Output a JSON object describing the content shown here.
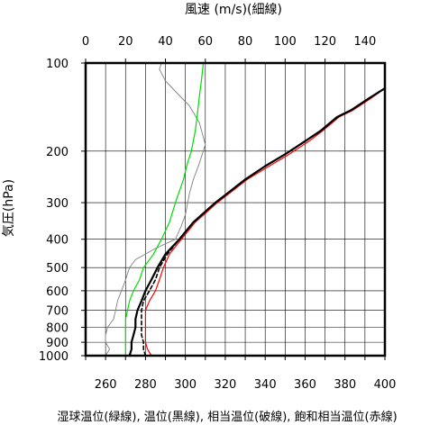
{
  "chart_data": {
    "type": "line",
    "top_axis": {
      "label": "風速 (m/s)(細線)",
      "ticks": [
        0,
        20,
        40,
        60,
        80,
        100,
        120,
        140
      ],
      "range": [
        0,
        150
      ]
    },
    "bottom_axis": {
      "label": "湿球温位(緑線), 温位(黒線), 相当温位(破線), 飽和相当温位(赤線)",
      "ticks": [
        260,
        280,
        300,
        320,
        340,
        360,
        380,
        400
      ],
      "range": [
        250,
        400
      ]
    },
    "y_axis": {
      "label": "気圧(hPa)",
      "scale": "log",
      "reversed": true,
      "ticks": [
        100,
        200,
        300,
        400,
        500,
        600,
        700,
        800,
        900,
        1000
      ],
      "range": [
        1000,
        100
      ]
    },
    "grid": true,
    "series": [
      {
        "name": "風速",
        "axis": "top",
        "color": "#808080",
        "style": "thin",
        "points": [
          [
            5,
            1000
          ],
          [
            10,
            1000
          ],
          [
            12,
            950
          ],
          [
            10,
            900
          ],
          [
            10,
            850
          ],
          [
            11,
            800
          ],
          [
            14,
            750
          ],
          [
            15,
            700
          ],
          [
            16,
            650
          ],
          [
            18,
            600
          ],
          [
            20,
            550
          ],
          [
            22,
            500
          ],
          [
            25,
            470
          ],
          [
            35,
            430
          ],
          [
            45,
            400
          ],
          [
            48,
            360
          ],
          [
            50,
            330
          ],
          [
            52,
            280
          ],
          [
            54,
            250
          ],
          [
            57,
            220
          ],
          [
            60,
            190
          ],
          [
            57,
            160
          ],
          [
            52,
            140
          ],
          [
            45,
            125
          ],
          [
            40,
            115
          ],
          [
            37,
            105
          ],
          [
            38,
            100
          ]
        ]
      },
      {
        "name": "湿球温位",
        "axis": "bottom",
        "color": "#00dd00",
        "style": "solid",
        "points": [
          [
            270,
            1000
          ],
          [
            270,
            950
          ],
          [
            270,
            900
          ],
          [
            270,
            850
          ],
          [
            270,
            800
          ],
          [
            270,
            750
          ],
          [
            271,
            700
          ],
          [
            272,
            650
          ],
          [
            274,
            600
          ],
          [
            277,
            550
          ],
          [
            279,
            500
          ],
          [
            284,
            450
          ],
          [
            288,
            400
          ],
          [
            292,
            350
          ],
          [
            295,
            300
          ],
          [
            299,
            250
          ],
          [
            301,
            220
          ],
          [
            303,
            200
          ],
          [
            305,
            170
          ],
          [
            306,
            150
          ],
          [
            307,
            130
          ],
          [
            308,
            115
          ],
          [
            309,
            100
          ]
        ]
      },
      {
        "name": "温位",
        "axis": "bottom",
        "color": "#000000",
        "style": "solid",
        "points": [
          [
            272,
            1000
          ],
          [
            273,
            950
          ],
          [
            273,
            900
          ],
          [
            274,
            850
          ],
          [
            275,
            800
          ],
          [
            275,
            750
          ],
          [
            276,
            700
          ],
          [
            278,
            650
          ],
          [
            280,
            600
          ],
          [
            283,
            550
          ],
          [
            286,
            500
          ],
          [
            290,
            450
          ],
          [
            297,
            400
          ],
          [
            304,
            350
          ],
          [
            315,
            300
          ],
          [
            330,
            250
          ],
          [
            340,
            225
          ],
          [
            350,
            205
          ],
          [
            360,
            185
          ],
          [
            368,
            170
          ],
          [
            376,
            153
          ],
          [
            383,
            145
          ],
          [
            392,
            132
          ],
          [
            400,
            122
          ]
        ]
      },
      {
        "name": "相当温位",
        "axis": "bottom",
        "color": "#000000",
        "style": "dashed",
        "points": [
          [
            280,
            1000
          ],
          [
            279,
            950
          ],
          [
            279,
            900
          ],
          [
            278,
            850
          ],
          [
            278,
            800
          ],
          [
            278,
            750
          ],
          [
            278,
            700
          ],
          [
            279,
            650
          ],
          [
            282,
            600
          ],
          [
            285,
            550
          ],
          [
            287,
            500
          ],
          [
            291,
            450
          ],
          [
            297,
            400
          ],
          [
            304,
            350
          ],
          [
            315,
            300
          ],
          [
            330,
            250
          ],
          [
            340,
            225
          ],
          [
            350,
            205
          ],
          [
            360,
            185
          ],
          [
            368,
            170
          ],
          [
            376,
            153
          ],
          [
            383,
            145
          ],
          [
            392,
            132
          ],
          [
            400,
            122
          ]
        ]
      },
      {
        "name": "飽和相当温位",
        "axis": "bottom",
        "color": "#ff0000",
        "style": "solid",
        "points": [
          [
            283,
            1000
          ],
          [
            281,
            950
          ],
          [
            280,
            900
          ],
          [
            280,
            850
          ],
          [
            280,
            800
          ],
          [
            280,
            750
          ],
          [
            280,
            700
          ],
          [
            282,
            650
          ],
          [
            285,
            600
          ],
          [
            287,
            550
          ],
          [
            289,
            500
          ],
          [
            292,
            450
          ],
          [
            298,
            400
          ],
          [
            305,
            350
          ],
          [
            316,
            300
          ],
          [
            331,
            250
          ],
          [
            342,
            225
          ],
          [
            352,
            205
          ],
          [
            362,
            185
          ],
          [
            369,
            170
          ],
          [
            377,
            153
          ],
          [
            384,
            145
          ],
          [
            393,
            132
          ],
          [
            400,
            122
          ]
        ]
      }
    ]
  }
}
